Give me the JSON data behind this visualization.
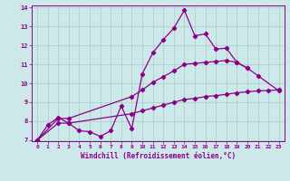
{
  "xlabel": "Windchill (Refroidissement éolien,°C)",
  "color": "#8b008b",
  "bg_color": "#cce8e8",
  "grid_color": "#aacccc",
  "ylim": [
    7,
    14
  ],
  "xlim": [
    -0.5,
    23.5
  ],
  "yticks": [
    7,
    8,
    9,
    10,
    11,
    12,
    13,
    14
  ],
  "xticks": [
    0,
    1,
    2,
    3,
    4,
    5,
    6,
    7,
    8,
    9,
    10,
    11,
    12,
    13,
    14,
    15,
    16,
    17,
    18,
    19,
    20,
    21,
    22,
    23
  ],
  "line1_x": [
    0,
    1,
    2,
    3,
    4,
    5,
    6,
    7,
    8,
    9,
    10,
    11,
    12,
    13,
    14,
    15,
    16,
    17,
    18,
    19,
    20
  ],
  "line1_y": [
    7.0,
    7.8,
    8.2,
    7.9,
    7.5,
    7.45,
    7.2,
    7.5,
    8.8,
    7.6,
    10.5,
    11.6,
    12.3,
    12.9,
    13.85,
    12.5,
    12.6,
    11.8,
    11.85,
    11.1,
    10.8
  ],
  "line2_x": [
    0,
    2,
    3,
    9,
    10,
    11,
    12,
    13,
    14,
    15,
    16,
    17,
    18,
    19,
    20,
    21,
    23
  ],
  "line2_y": [
    7.0,
    8.15,
    8.15,
    9.3,
    9.65,
    10.05,
    10.35,
    10.65,
    11.0,
    11.05,
    11.1,
    11.15,
    11.2,
    11.1,
    10.8,
    10.4,
    9.6
  ],
  "line3_x": [
    0,
    2,
    3,
    9,
    10,
    11,
    12,
    13,
    14,
    15,
    16,
    17,
    18,
    19,
    20,
    21,
    22,
    23
  ],
  "line3_y": [
    7.0,
    7.9,
    7.9,
    8.4,
    8.55,
    8.7,
    8.85,
    9.0,
    9.15,
    9.2,
    9.3,
    9.35,
    9.42,
    9.5,
    9.55,
    9.6,
    9.62,
    9.65
  ]
}
